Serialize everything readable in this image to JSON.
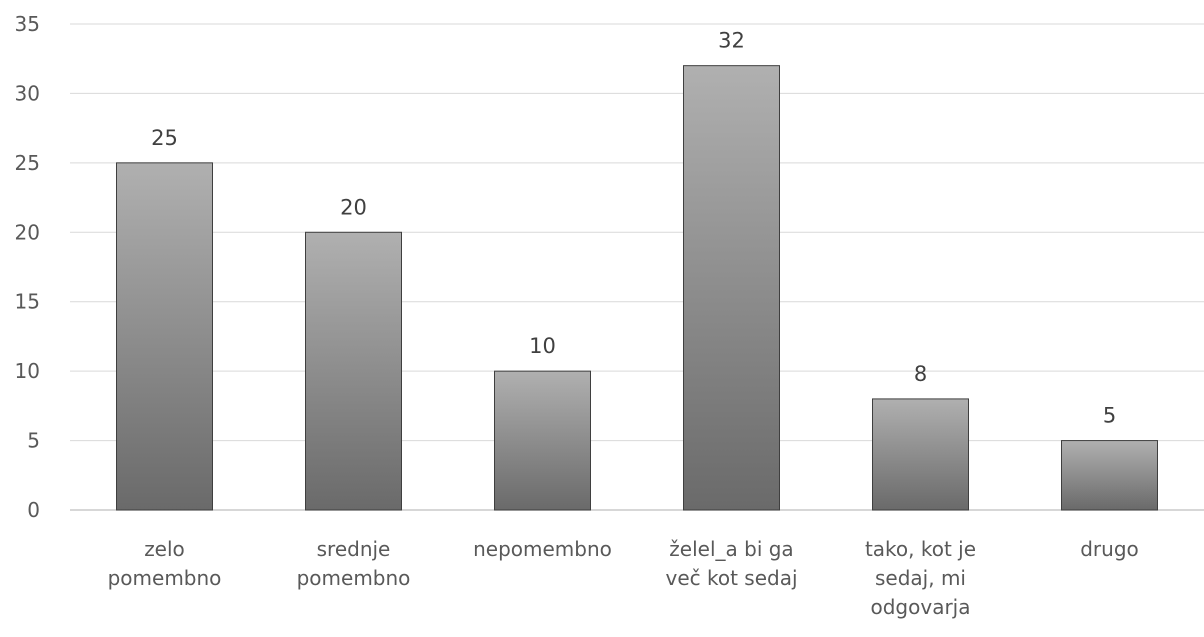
{
  "chart_data": {
    "type": "bar",
    "categories": [
      [
        "zelo",
        "pomembno"
      ],
      [
        "srednje",
        "pomembno"
      ],
      [
        "nepomembno"
      ],
      [
        "želel_a bi ga",
        "več kot sedaj"
      ],
      [
        "tako, kot je",
        "sedaj, mi",
        "odgovarja"
      ],
      [
        "drugo"
      ]
    ],
    "values": [
      25,
      20,
      10,
      32,
      8,
      5
    ],
    "data_labels": [
      "25",
      "20",
      "10",
      "32",
      "8",
      "5"
    ],
    "yticks": [
      "0",
      "5",
      "10",
      "15",
      "20",
      "25",
      "30",
      "35"
    ],
    "ylim": [
      0,
      35
    ],
    "grid": true,
    "legend": "none",
    "bar_gradient": [
      "#b0b0b0",
      "#6a6a6a"
    ]
  }
}
